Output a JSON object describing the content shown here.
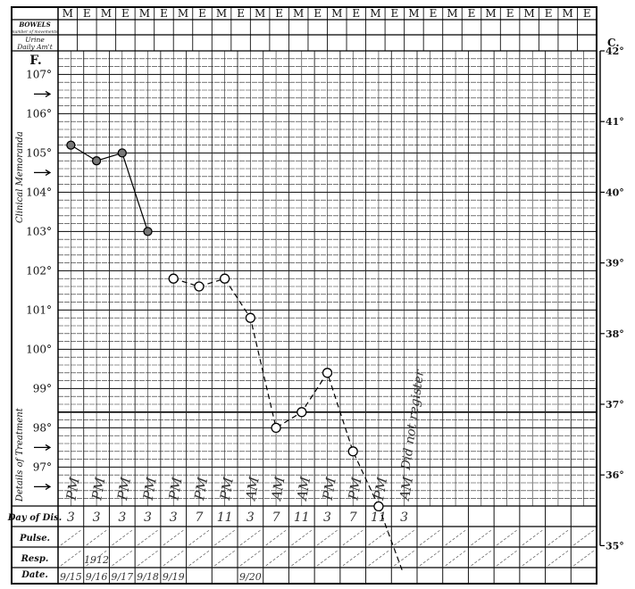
{
  "header": {
    "shift_labels": [
      "M",
      "E"
    ],
    "bowels_label": "BOWELS",
    "bowels_sub": "number of movements",
    "urine_label": "Urine",
    "urine_sub": "Daily Am't"
  },
  "side_labels": {
    "clinical": "Clinical Memoranda",
    "treatment": "Details of Treatment"
  },
  "rows": {
    "day": "Day of Dis.",
    "pulse": "Pulse.",
    "resp": "Resp.",
    "date": "Date."
  },
  "resp_note": "1912",
  "no_register_note": "Did not register",
  "chart_data": {
    "type": "line",
    "left_axis": {
      "unit": "F.",
      "ticks": [
        "107°",
        "106°",
        "105°",
        "104°",
        "103°",
        "102°",
        "101°",
        "100°",
        "99°",
        "98°",
        "97°"
      ],
      "ylim": [
        95.9,
        107.6
      ]
    },
    "right_axis": {
      "unit": "C.",
      "ticks": [
        "42°",
        "41°",
        "40°",
        "39°",
        "38°",
        "37°",
        "36°",
        "35°"
      ],
      "ylim": [
        35,
        42
      ]
    },
    "grid": true,
    "normal_line_f": 98.4,
    "hours": [
      "3",
      "3",
      "3",
      "3",
      "3",
      "7",
      "11",
      "3",
      "7",
      "11",
      "3",
      "7",
      "11",
      "3"
    ],
    "meridiem": [
      "PM",
      "PM",
      "PM",
      "PM",
      "PM",
      "PM",
      "PM",
      "AM",
      "AM",
      "AM",
      "PM",
      "PM",
      "PM",
      "AM"
    ],
    "dates": [
      "9/15",
      "9/16",
      "9/17",
      "9/18",
      "9/19",
      "",
      "",
      "9/20",
      "",
      "",
      "",
      "",
      "",
      ""
    ],
    "values": [
      105.2,
      104.8,
      105.0,
      103.0,
      101.8,
      101.6,
      101.8,
      100.8,
      98.0,
      98.4,
      99.4,
      97.4,
      96.0,
      null
    ],
    "segments": [
      {
        "style": "solid",
        "from": 0,
        "to": 3
      },
      {
        "style": "dashed",
        "from": 4,
        "to": 12
      }
    ],
    "marker_style": [
      "filled",
      "filled",
      "filled",
      "filled",
      "open",
      "open",
      "open",
      "open",
      "open",
      "open",
      "open",
      "open",
      "open",
      "open"
    ]
  }
}
